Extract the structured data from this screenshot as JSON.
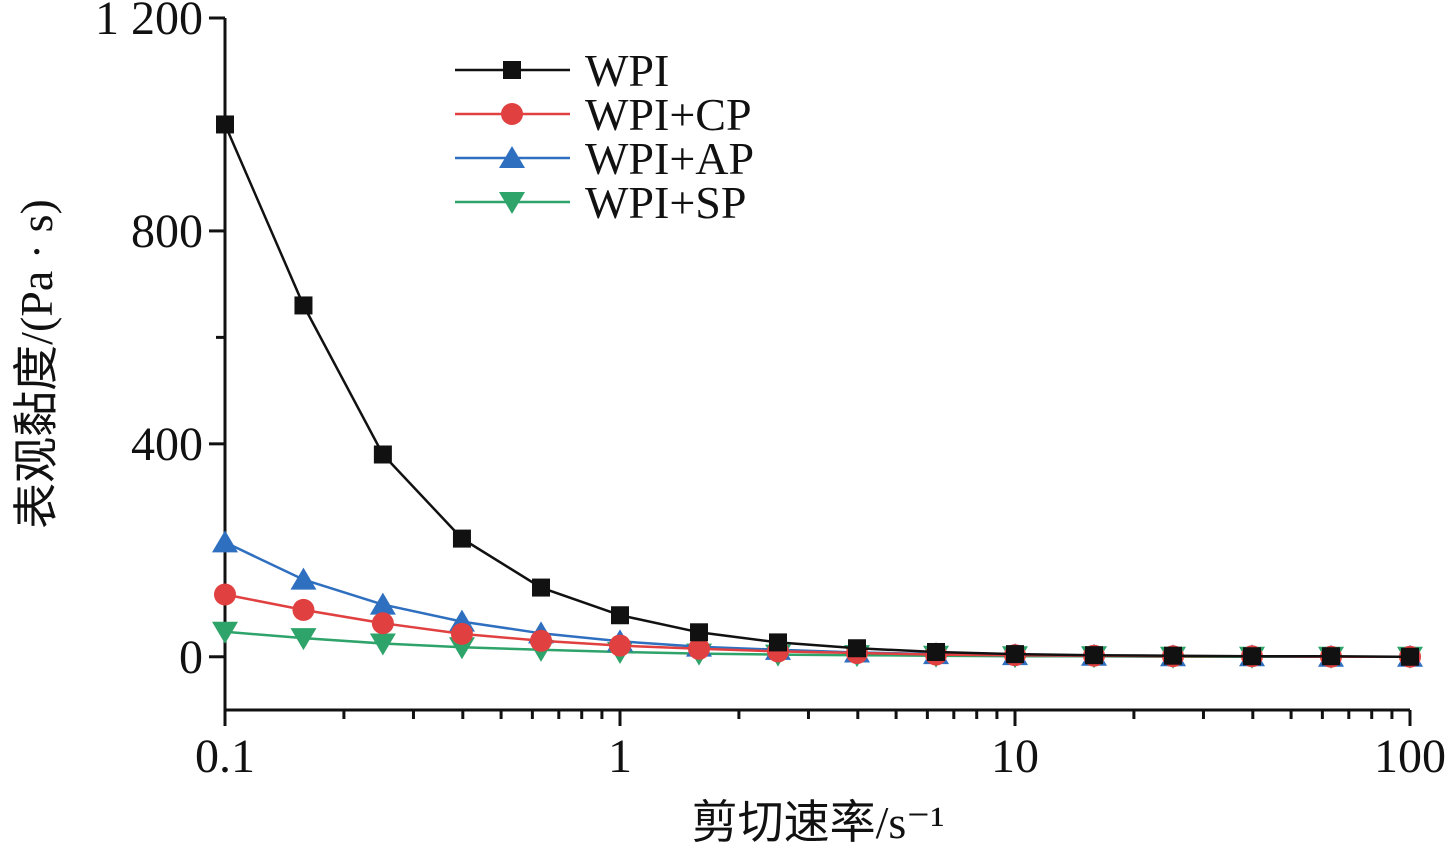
{
  "chart_data": {
    "type": "line",
    "title": "",
    "xlabel": "剪切速率/s⁻¹",
    "ylabel": "表观黏度/(Pa · s)",
    "x_scale": "log",
    "xlim": [
      0.1,
      100
    ],
    "ylim": [
      -100,
      1200
    ],
    "x_ticks": [
      0.1,
      1,
      10,
      100
    ],
    "x_tick_labels": [
      "0.1",
      "1",
      "10",
      "100"
    ],
    "y_ticks": [
      0,
      400,
      800,
      1200
    ],
    "y_tick_labels": [
      "0",
      "400",
      "800",
      "1 200"
    ],
    "grid": false,
    "legend_position": "top-left",
    "x": [
      0.1,
      0.158,
      0.251,
      0.398,
      0.631,
      1,
      1.585,
      2.512,
      3.981,
      6.31,
      10,
      15.85,
      25.12,
      39.81,
      63.1,
      100
    ],
    "series": [
      {
        "name": "WPI",
        "color": "#111111",
        "marker": "square",
        "values": [
          1000,
          660,
          380,
          222,
          130,
          78,
          46,
          27,
          16,
          9,
          5,
          3,
          2,
          1,
          1,
          0
        ]
      },
      {
        "name": "WPI+CP",
        "color": "#e04040",
        "marker": "circle",
        "values": [
          117,
          88,
          63,
          43,
          30,
          21,
          15,
          10,
          7,
          4,
          3,
          2,
          1,
          1,
          0,
          0
        ]
      },
      {
        "name": "WPI+AP",
        "color": "#2f6fbf",
        "marker": "triangle-up",
        "values": [
          215,
          145,
          98,
          66,
          44,
          29,
          19,
          13,
          8,
          5,
          3,
          2,
          1,
          1,
          0,
          0
        ]
      },
      {
        "name": "WPI+SP",
        "color": "#2ea36a",
        "marker": "triangle-down",
        "values": [
          47,
          35,
          25,
          18,
          13,
          9,
          6,
          4,
          3,
          2,
          1,
          1,
          0,
          0,
          0,
          0
        ]
      }
    ]
  }
}
